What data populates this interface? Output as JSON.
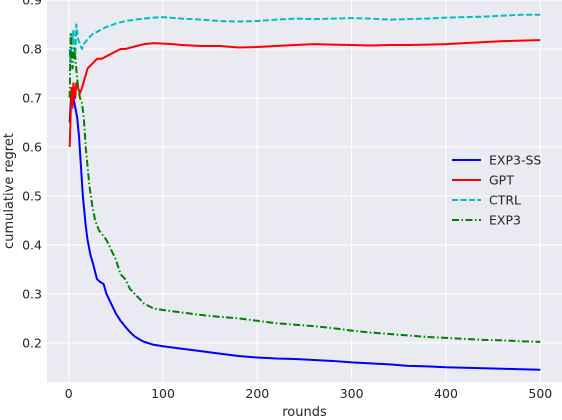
{
  "chart_data": {
    "type": "line",
    "title": "",
    "xlabel": "rounds",
    "ylabel": "cumulative regret",
    "xlim": [
      -23,
      523
    ],
    "ylim": [
      0.12,
      0.9
    ],
    "xticks": [
      0,
      100,
      200,
      300,
      400,
      500
    ],
    "yticks": [
      0.2,
      0.3,
      0.4,
      0.5,
      0.6,
      0.7,
      0.8,
      0.9
    ],
    "xtick_labels": [
      "0",
      "100",
      "200",
      "300",
      "400",
      "500"
    ],
    "ytick_labels": [
      "0.2",
      "0.3",
      "0.4",
      "0.5",
      "0.6",
      "0.7",
      "0.8",
      "0.9"
    ],
    "grid": true,
    "background": "#EAEAF2",
    "legend_position": "center-right",
    "series": [
      {
        "name": "EXP3-SS",
        "color": "#0000FF",
        "line_style": "solid",
        "points": [
          [
            1,
            0.65
          ],
          [
            3,
            0.72
          ],
          [
            5,
            0.7
          ],
          [
            7,
            0.68
          ],
          [
            9,
            0.66
          ],
          [
            11,
            0.62
          ],
          [
            13,
            0.56
          ],
          [
            15,
            0.5
          ],
          [
            18,
            0.44
          ],
          [
            20,
            0.41
          ],
          [
            23,
            0.38
          ],
          [
            26,
            0.36
          ],
          [
            30,
            0.33
          ],
          [
            33,
            0.325
          ],
          [
            37,
            0.32
          ],
          [
            40,
            0.3
          ],
          [
            45,
            0.28
          ],
          [
            50,
            0.26
          ],
          [
            55,
            0.245
          ],
          [
            60,
            0.233
          ],
          [
            65,
            0.222
          ],
          [
            70,
            0.213
          ],
          [
            75,
            0.207
          ],
          [
            80,
            0.202
          ],
          [
            90,
            0.196
          ],
          [
            100,
            0.193
          ],
          [
            120,
            0.188
          ],
          [
            140,
            0.183
          ],
          [
            160,
            0.178
          ],
          [
            180,
            0.173
          ],
          [
            200,
            0.17
          ],
          [
            220,
            0.168
          ],
          [
            240,
            0.167
          ],
          [
            260,
            0.165
          ],
          [
            280,
            0.163
          ],
          [
            300,
            0.16
          ],
          [
            320,
            0.158
          ],
          [
            340,
            0.156
          ],
          [
            360,
            0.153
          ],
          [
            380,
            0.152
          ],
          [
            400,
            0.15
          ],
          [
            420,
            0.149
          ],
          [
            440,
            0.148
          ],
          [
            460,
            0.147
          ],
          [
            480,
            0.146
          ],
          [
            500,
            0.145
          ]
        ]
      },
      {
        "name": "GPT",
        "color": "#FF0000",
        "line_style": "solid",
        "points": [
          [
            1,
            0.6
          ],
          [
            2,
            0.66
          ],
          [
            3,
            0.72
          ],
          [
            4,
            0.68
          ],
          [
            5,
            0.73
          ],
          [
            6,
            0.71
          ],
          [
            7,
            0.7
          ],
          [
            8,
            0.73
          ],
          [
            10,
            0.72
          ],
          [
            12,
            0.71
          ],
          [
            14,
            0.72
          ],
          [
            17,
            0.74
          ],
          [
            20,
            0.76
          ],
          [
            25,
            0.77
          ],
          [
            30,
            0.78
          ],
          [
            35,
            0.78
          ],
          [
            40,
            0.785
          ],
          [
            45,
            0.79
          ],
          [
            50,
            0.795
          ],
          [
            55,
            0.8
          ],
          [
            60,
            0.8
          ],
          [
            70,
            0.805
          ],
          [
            80,
            0.81
          ],
          [
            90,
            0.812
          ],
          [
            100,
            0.811
          ],
          [
            110,
            0.81
          ],
          [
            120,
            0.808
          ],
          [
            140,
            0.806
          ],
          [
            160,
            0.806
          ],
          [
            180,
            0.803
          ],
          [
            200,
            0.804
          ],
          [
            220,
            0.806
          ],
          [
            240,
            0.808
          ],
          [
            260,
            0.81
          ],
          [
            280,
            0.809
          ],
          [
            300,
            0.808
          ],
          [
            320,
            0.807
          ],
          [
            340,
            0.808
          ],
          [
            360,
            0.808
          ],
          [
            380,
            0.809
          ],
          [
            400,
            0.81
          ],
          [
            420,
            0.812
          ],
          [
            440,
            0.814
          ],
          [
            460,
            0.816
          ],
          [
            480,
            0.817
          ],
          [
            500,
            0.818
          ]
        ]
      },
      {
        "name": "CTRL",
        "color": "#00BFBF",
        "line_style": "dashed",
        "points": [
          [
            1,
            0.8
          ],
          [
            2,
            0.77
          ],
          [
            3,
            0.83
          ],
          [
            4,
            0.82
          ],
          [
            5,
            0.84
          ],
          [
            6,
            0.8
          ],
          [
            7,
            0.78
          ],
          [
            8,
            0.85
          ],
          [
            10,
            0.82
          ],
          [
            12,
            0.81
          ],
          [
            14,
            0.8
          ],
          [
            16,
            0.81
          ],
          [
            20,
            0.82
          ],
          [
            25,
            0.83
          ],
          [
            30,
            0.835
          ],
          [
            35,
            0.84
          ],
          [
            40,
            0.845
          ],
          [
            45,
            0.848
          ],
          [
            50,
            0.852
          ],
          [
            60,
            0.857
          ],
          [
            70,
            0.86
          ],
          [
            80,
            0.862
          ],
          [
            90,
            0.864
          ],
          [
            100,
            0.865
          ],
          [
            120,
            0.862
          ],
          [
            140,
            0.86
          ],
          [
            160,
            0.857
          ],
          [
            180,
            0.856
          ],
          [
            200,
            0.857
          ],
          [
            220,
            0.86
          ],
          [
            240,
            0.862
          ],
          [
            260,
            0.861
          ],
          [
            280,
            0.862
          ],
          [
            300,
            0.863
          ],
          [
            320,
            0.862
          ],
          [
            340,
            0.86
          ],
          [
            360,
            0.861
          ],
          [
            380,
            0.862
          ],
          [
            400,
            0.864
          ],
          [
            420,
            0.865
          ],
          [
            440,
            0.866
          ],
          [
            460,
            0.868
          ],
          [
            480,
            0.87
          ],
          [
            500,
            0.87
          ]
        ]
      },
      {
        "name": "EXP3",
        "color": "#008000",
        "line_style": "dashdot",
        "points": [
          [
            1,
            0.7
          ],
          [
            2,
            0.83
          ],
          [
            3,
            0.82
          ],
          [
            4,
            0.76
          ],
          [
            5,
            0.78
          ],
          [
            6,
            0.8
          ],
          [
            7,
            0.78
          ],
          [
            8,
            0.76
          ],
          [
            9,
            0.74
          ],
          [
            10,
            0.72
          ],
          [
            12,
            0.7
          ],
          [
            14,
            0.69
          ],
          [
            16,
            0.66
          ],
          [
            18,
            0.6
          ],
          [
            20,
            0.56
          ],
          [
            22,
            0.52
          ],
          [
            25,
            0.48
          ],
          [
            28,
            0.45
          ],
          [
            32,
            0.43
          ],
          [
            36,
            0.42
          ],
          [
            40,
            0.41
          ],
          [
            45,
            0.39
          ],
          [
            50,
            0.37
          ],
          [
            55,
            0.34
          ],
          [
            60,
            0.33
          ],
          [
            65,
            0.31
          ],
          [
            70,
            0.3
          ],
          [
            75,
            0.29
          ],
          [
            80,
            0.28
          ],
          [
            85,
            0.275
          ],
          [
            90,
            0.27
          ],
          [
            100,
            0.267
          ],
          [
            120,
            0.262
          ],
          [
            140,
            0.257
          ],
          [
            160,
            0.253
          ],
          [
            180,
            0.25
          ],
          [
            200,
            0.245
          ],
          [
            220,
            0.24
          ],
          [
            240,
            0.237
          ],
          [
            260,
            0.234
          ],
          [
            280,
            0.23
          ],
          [
            300,
            0.225
          ],
          [
            320,
            0.221
          ],
          [
            340,
            0.218
          ],
          [
            360,
            0.215
          ],
          [
            380,
            0.212
          ],
          [
            400,
            0.21
          ],
          [
            420,
            0.208
          ],
          [
            440,
            0.206
          ],
          [
            460,
            0.205
          ],
          [
            480,
            0.203
          ],
          [
            500,
            0.202
          ]
        ]
      }
    ]
  }
}
